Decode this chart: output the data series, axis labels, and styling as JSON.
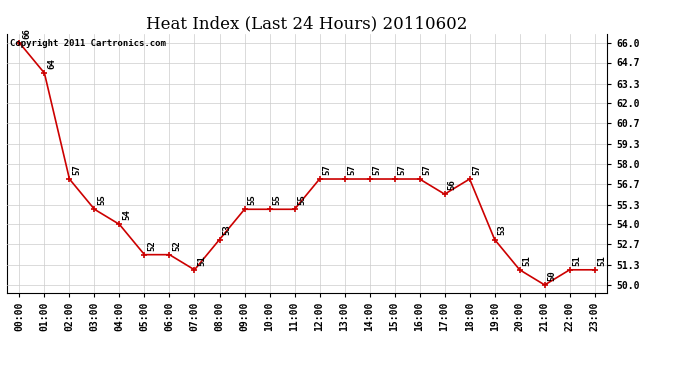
{
  "title": "Heat Index (Last 24 Hours) 20110602",
  "copyright": "Copyright 2011 Cartronics.com",
  "x_labels": [
    "00:00",
    "01:00",
    "02:00",
    "03:00",
    "04:00",
    "05:00",
    "06:00",
    "07:00",
    "08:00",
    "09:00",
    "10:00",
    "11:00",
    "12:00",
    "13:00",
    "14:00",
    "15:00",
    "16:00",
    "17:00",
    "18:00",
    "19:00",
    "20:00",
    "21:00",
    "22:00",
    "23:00"
  ],
  "y_values": [
    66,
    64,
    57,
    55,
    54,
    52,
    52,
    51,
    53,
    55,
    55,
    55,
    57,
    57,
    57,
    57,
    57,
    56,
    57,
    53,
    51,
    50,
    51,
    51
  ],
  "y_ticks": [
    50.0,
    51.3,
    52.7,
    54.0,
    55.3,
    56.7,
    58.0,
    59.3,
    60.7,
    62.0,
    63.3,
    64.7,
    66.0
  ],
  "ylim": [
    49.5,
    66.6
  ],
  "xlim": [
    -0.5,
    23.5
  ],
  "line_color": "#cc0000",
  "bg_color": "#ffffff",
  "grid_color": "#cccccc",
  "title_fontsize": 12,
  "tick_fontsize": 7,
  "annot_fontsize": 6.5,
  "copyright_fontsize": 6.5
}
